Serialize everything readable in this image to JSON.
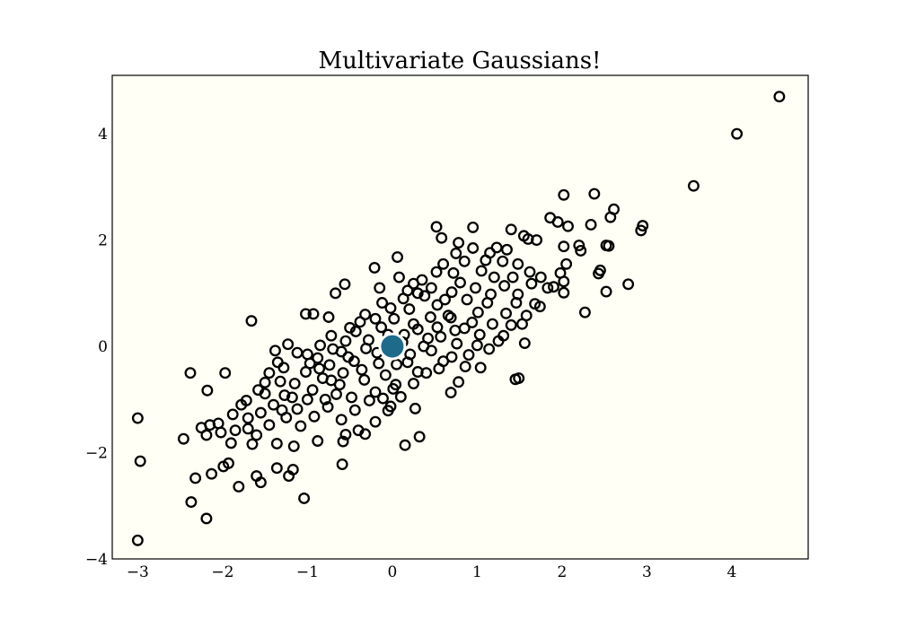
{
  "chart_data": {
    "type": "scatter",
    "title": "Multivariate Gaussians!",
    "xlabel": "",
    "ylabel": "",
    "xlim": [
      -3.3,
      4.9
    ],
    "ylim": [
      -4.0,
      5.1
    ],
    "x_ticks": [
      -3,
      -2,
      -1,
      0,
      1,
      2,
      3,
      4
    ],
    "y_ticks": [
      -4,
      -2,
      0,
      2,
      4
    ],
    "grid": false,
    "legend": "none",
    "colors": {
      "plot_background": "#fffff5",
      "marker_edge": "#000000",
      "marker_face": "none",
      "mean_fill": "#1d6a8a",
      "mean_edge": "#ffffff"
    },
    "mean_point": {
      "x": 0.0,
      "y": 0.0
    },
    "points": [
      [
        4.56,
        4.7
      ],
      [
        4.06,
        4.0
      ],
      [
        3.55,
        3.02
      ],
      [
        2.93,
        2.18
      ],
      [
        2.95,
        2.27
      ],
      [
        2.78,
        1.17
      ],
      [
        2.61,
        2.58
      ],
      [
        2.57,
        2.43
      ],
      [
        2.38,
        2.87
      ],
      [
        2.02,
        2.85
      ],
      [
        2.52,
        1.03
      ],
      [
        2.27,
        0.64
      ],
      [
        1.86,
        2.42
      ],
      [
        1.95,
        2.34
      ],
      [
        2.07,
        2.26
      ],
      [
        2.34,
        2.29
      ],
      [
        2.45,
        1.43
      ],
      [
        2.43,
        1.37
      ],
      [
        2.52,
        1.9
      ],
      [
        2.55,
        1.89
      ],
      [
        2.22,
        1.8
      ],
      [
        2.2,
        1.9
      ],
      [
        2.02,
        1.88
      ],
      [
        2.05,
        1.55
      ],
      [
        2.02,
        1.22
      ],
      [
        2.02,
        1.01
      ],
      [
        1.6,
        2.02
      ],
      [
        1.7,
        2.0
      ],
      [
        1.55,
        2.08
      ],
      [
        1.4,
        2.2
      ],
      [
        1.15,
        1.76
      ],
      [
        1.23,
        1.86
      ],
      [
        1.53,
        0.42
      ],
      [
        1.56,
        0.06
      ],
      [
        1.45,
        -0.62
      ],
      [
        1.49,
        -0.6
      ],
      [
        1.25,
        0.1
      ],
      [
        1.04,
        -0.4
      ],
      [
        0.78,
        -0.67
      ],
      [
        0.69,
        -0.87
      ],
      [
        0.32,
        -1.7
      ],
      [
        0.15,
        -1.86
      ],
      [
        0.52,
        2.25
      ],
      [
        0.58,
        2.04
      ],
      [
        0.78,
        1.95
      ],
      [
        0.95,
        2.24
      ],
      [
        0.06,
        1.68
      ],
      [
        -0.21,
        1.48
      ],
      [
        -0.56,
        1.17
      ],
      [
        -0.67,
        1.0
      ],
      [
        -0.93,
        0.61
      ],
      [
        -1.02,
        0.61
      ],
      [
        -1.66,
        0.48
      ],
      [
        -2.38,
        -0.5
      ],
      [
        -2.18,
        -0.83
      ],
      [
        -1.97,
        -0.5
      ],
      [
        -3.0,
        -1.35
      ],
      [
        -2.97,
        -2.16
      ],
      [
        -3.0,
        -3.65
      ],
      [
        -2.37,
        -2.93
      ],
      [
        -2.19,
        -3.24
      ],
      [
        -2.46,
        -1.74
      ],
      [
        -2.25,
        -1.53
      ],
      [
        -2.19,
        -1.67
      ],
      [
        -2.32,
        -2.48
      ],
      [
        -2.13,
        -2.4
      ],
      [
        -1.99,
        -2.26
      ],
      [
        -1.93,
        -2.2
      ],
      [
        -1.81,
        -2.64
      ],
      [
        -1.6,
        -2.44
      ],
      [
        -1.55,
        -2.56
      ],
      [
        -1.36,
        -2.29
      ],
      [
        -1.22,
        -2.44
      ],
      [
        -1.17,
        -2.32
      ],
      [
        -1.04,
        -2.86
      ],
      [
        -0.59,
        -2.22
      ],
      [
        -1.36,
        -1.83
      ],
      [
        -1.16,
        -1.88
      ],
      [
        -0.88,
        -1.78
      ],
      [
        -0.58,
        -1.79
      ],
      [
        -0.32,
        -1.65
      ],
      [
        -0.02,
        -1.13
      ],
      [
        -0.05,
        -1.21
      ],
      [
        0.01,
        -0.8
      ],
      [
        0.27,
        -1.17
      ],
      [
        -1.6,
        -1.67
      ],
      [
        -1.7,
        -1.55
      ],
      [
        -1.9,
        -1.82
      ],
      [
        -2.05,
        -1.45
      ],
      [
        -1.78,
        -1.1
      ],
      [
        -1.5,
        -0.89
      ],
      [
        -1.32,
        -0.66
      ],
      [
        -1.28,
        -0.4
      ],
      [
        -1.38,
        -0.08
      ],
      [
        -1.23,
        0.04
      ],
      [
        -1.0,
        -0.15
      ],
      [
        -0.72,
        0.2
      ],
      [
        -0.75,
        0.55
      ],
      [
        -0.5,
        0.35
      ],
      [
        -0.32,
        0.6
      ],
      [
        -0.12,
        0.82
      ],
      [
        0.18,
        1.05
      ],
      [
        0.35,
        1.25
      ],
      [
        0.52,
        1.4
      ],
      [
        0.72,
        1.38
      ],
      [
        0.85,
        1.6
      ],
      [
        1.05,
        1.42
      ],
      [
        1.3,
        1.6
      ],
      [
        1.42,
        1.3
      ],
      [
        1.62,
        1.4
      ],
      [
        1.75,
        1.3
      ],
      [
        1.83,
        1.1
      ],
      [
        1.68,
        0.8
      ],
      [
        1.46,
        0.82
      ],
      [
        1.34,
        0.62
      ],
      [
        1.12,
        0.82
      ],
      [
        0.94,
        0.45
      ],
      [
        0.74,
        0.3
      ],
      [
        0.66,
        0.58
      ],
      [
        0.57,
        0.18
      ],
      [
        0.42,
        0.15
      ],
      [
        0.25,
        0.42
      ],
      [
        0.12,
        0.08
      ],
      [
        -0.05,
        0.22
      ],
      [
        -0.18,
        -0.12
      ],
      [
        -0.31,
        -0.04
      ],
      [
        -0.45,
        -0.28
      ],
      [
        -0.6,
        -0.1
      ],
      [
        -0.74,
        -0.35
      ],
      [
        -0.88,
        -0.22
      ],
      [
        -1.02,
        -0.48
      ],
      [
        -1.15,
        -0.7
      ],
      [
        -1.27,
        -0.92
      ],
      [
        -1.4,
        -1.1
      ],
      [
        -1.55,
        -1.25
      ],
      [
        -1.7,
        -1.35
      ],
      [
        -1.85,
        -1.58
      ],
      [
        -0.94,
        -0.82
      ],
      [
        -0.79,
        -1.0
      ],
      [
        -0.62,
        -0.72
      ],
      [
        -0.48,
        -0.96
      ],
      [
        -0.33,
        -0.63
      ],
      [
        -0.2,
        -0.86
      ],
      [
        -0.08,
        -0.54
      ],
      [
        0.04,
        -0.72
      ],
      [
        0.18,
        -0.3
      ],
      [
        0.3,
        -0.48
      ],
      [
        0.46,
        -0.08
      ],
      [
        0.6,
        -0.28
      ],
      [
        0.76,
        0.05
      ],
      [
        0.9,
        -0.16
      ],
      [
        1.03,
        0.22
      ],
      [
        1.18,
        0.42
      ],
      [
        1.31,
        0.2
      ],
      [
        0.88,
        0.88
      ],
      [
        0.7,
        1.02
      ],
      [
        0.53,
        0.78
      ],
      [
        0.38,
        0.95
      ],
      [
        0.2,
        0.7
      ],
      [
        0.02,
        0.52
      ],
      [
        -0.13,
        0.36
      ],
      [
        -0.28,
        0.12
      ],
      [
        -0.43,
        0.28
      ],
      [
        -0.58,
        -0.5
      ],
      [
        -0.72,
        -0.64
      ],
      [
        -0.86,
        -0.42
      ],
      [
        -1.0,
        -1.0
      ],
      [
        -1.12,
        -1.18
      ],
      [
        -1.25,
        -1.34
      ],
      [
        -1.08,
        -1.5
      ],
      [
        -0.92,
        -1.32
      ],
      [
        -0.76,
        -1.14
      ],
      [
        -0.6,
        -1.38
      ],
      [
        -0.44,
        -1.2
      ],
      [
        -0.27,
        -1.02
      ],
      [
        -0.11,
        -0.98
      ],
      [
        0.05,
        -0.34
      ],
      [
        0.21,
        -0.15
      ],
      [
        0.37,
        0.0
      ],
      [
        0.53,
        0.36
      ],
      [
        0.69,
        0.54
      ],
      [
        0.85,
        0.34
      ],
      [
        1.01,
        0.64
      ],
      [
        1.16,
        0.98
      ],
      [
        1.32,
        1.14
      ],
      [
        1.48,
        0.98
      ],
      [
        1.64,
        1.18
      ],
      [
        1.2,
        1.3
      ],
      [
        0.98,
        1.1
      ],
      [
        0.8,
        1.2
      ],
      [
        0.45,
        0.55
      ],
      [
        0.3,
        0.32
      ],
      [
        0.14,
        0.22
      ],
      [
        -0.02,
        -0.1
      ],
      [
        -0.16,
        -0.32
      ],
      [
        -0.36,
        -0.44
      ],
      [
        -0.52,
        -0.2
      ],
      [
        -0.66,
        -0.9
      ],
      [
        -0.82,
        -0.6
      ],
      [
        -0.97,
        -0.32
      ],
      [
        -1.12,
        -0.12
      ],
      [
        -1.45,
        -0.5
      ],
      [
        -1.58,
        -0.82
      ],
      [
        -1.72,
        -1.02
      ],
      [
        -1.88,
        -1.28
      ],
      [
        -2.02,
        -1.62
      ],
      [
        -2.15,
        -1.48
      ],
      [
        -1.65,
        -1.84
      ],
      [
        -1.45,
        -1.48
      ],
      [
        -1.3,
        -1.2
      ],
      [
        -1.18,
        -0.96
      ],
      [
        -0.4,
        -1.58
      ],
      [
        -0.55,
        -1.66
      ],
      [
        -0.2,
        -1.42
      ],
      [
        0.1,
        -0.95
      ],
      [
        0.25,
        -0.7
      ],
      [
        0.4,
        -0.5
      ],
      [
        0.55,
        -0.42
      ],
      [
        0.7,
        -0.2
      ],
      [
        0.86,
        -0.38
      ],
      [
        1.0,
        0.02
      ],
      [
        1.14,
        -0.05
      ],
      [
        1.4,
        0.4
      ],
      [
        1.58,
        0.58
      ],
      [
        1.74,
        0.75
      ],
      [
        1.9,
        1.12
      ],
      [
        1.98,
        1.38
      ],
      [
        0.62,
        0.88
      ],
      [
        0.46,
        1.1
      ],
      [
        0.3,
        1.0
      ],
      [
        0.13,
        0.9
      ],
      [
        -0.02,
        0.72
      ],
      [
        -0.2,
        0.52
      ],
      [
        -0.38,
        0.46
      ],
      [
        -0.55,
        0.1
      ],
      [
        -0.7,
        -0.05
      ],
      [
        -0.85,
        0.02
      ],
      [
        -1.35,
        -0.3
      ],
      [
        -1.5,
        -0.68
      ],
      [
        -0.15,
        1.1
      ],
      [
        0.08,
        1.3
      ],
      [
        0.25,
        1.18
      ],
      [
        0.6,
        1.55
      ],
      [
        0.75,
        1.75
      ],
      [
        0.95,
        1.85
      ],
      [
        1.1,
        1.62
      ],
      [
        1.35,
        1.82
      ],
      [
        1.48,
        1.55
      ]
    ]
  }
}
